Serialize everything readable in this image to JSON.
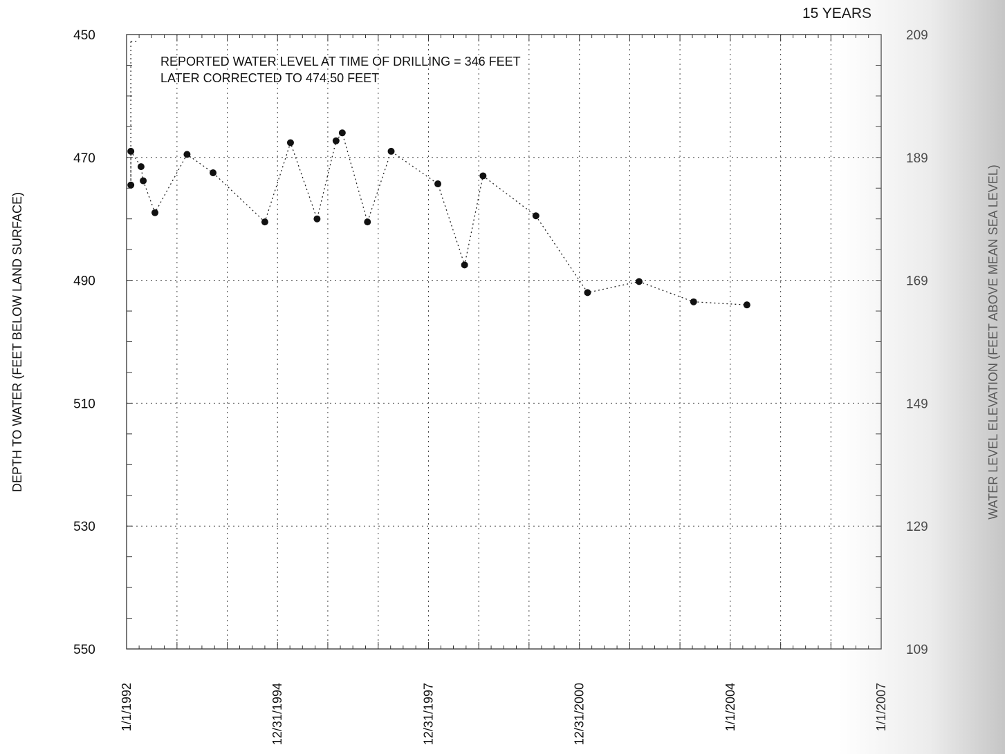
{
  "chart_data": {
    "type": "scatter",
    "span_label": "15 YEARS",
    "annotation": [
      "REPORTED WATER LEVEL AT TIME OF DRILLING = 346 FEET",
      "LATER CORRECTED TO 474.50 FEET"
    ],
    "ylabel": "DEPTH TO WATER (FEET BELOW LAND SURFACE)",
    "y2label": "WATER LEVEL ELEVATION (FEET ABOVE MEAN SEA LEVEL)",
    "ylim": [
      450,
      550
    ],
    "y_ticks": [
      "450",
      "470",
      "490",
      "510",
      "530",
      "550"
    ],
    "y2_ticks": [
      "209",
      "189",
      "169",
      "149",
      "129",
      "109"
    ],
    "xlim": [
      "1992-01-01",
      "2007-01-01"
    ],
    "x_ticks": [
      "1/1/1992",
      "12/31/1994",
      "12/31/1997",
      "12/31/2000",
      "1/1/2004",
      "1/1/2007"
    ],
    "connected_line": "dotted",
    "grid": true,
    "series": [
      {
        "points": [
          {
            "x": "1992-02-01",
            "y": 474.5
          },
          {
            "x": "1992-02-01",
            "y": 469.0
          },
          {
            "x": "1992-04-15",
            "y": 471.5
          },
          {
            "x": "1992-05-01",
            "y": 473.8
          },
          {
            "x": "1992-07-25",
            "y": 479.0
          },
          {
            "x": "1993-03-15",
            "y": 469.5
          },
          {
            "x": "1993-09-20",
            "y": 472.5
          },
          {
            "x": "1994-10-01",
            "y": 480.5
          },
          {
            "x": "1995-04-05",
            "y": 467.6
          },
          {
            "x": "1995-10-15",
            "y": 480.0
          },
          {
            "x": "1996-03-01",
            "y": 467.3
          },
          {
            "x": "1996-04-15",
            "y": 466.0
          },
          {
            "x": "1996-10-15",
            "y": 480.5
          },
          {
            "x": "1997-04-05",
            "y": 469.0
          },
          {
            "x": "1998-03-10",
            "y": 474.3
          },
          {
            "x": "1998-09-20",
            "y": 487.5
          },
          {
            "x": "1999-02-01",
            "y": 473.0
          },
          {
            "x": "2000-02-20",
            "y": 479.5
          },
          {
            "x": "2001-03-01",
            "y": 492.0
          },
          {
            "x": "2002-03-10",
            "y": 490.2
          },
          {
            "x": "2003-04-10",
            "y": 493.5
          },
          {
            "x": "2004-05-01",
            "y": 494.0
          }
        ]
      }
    ]
  }
}
